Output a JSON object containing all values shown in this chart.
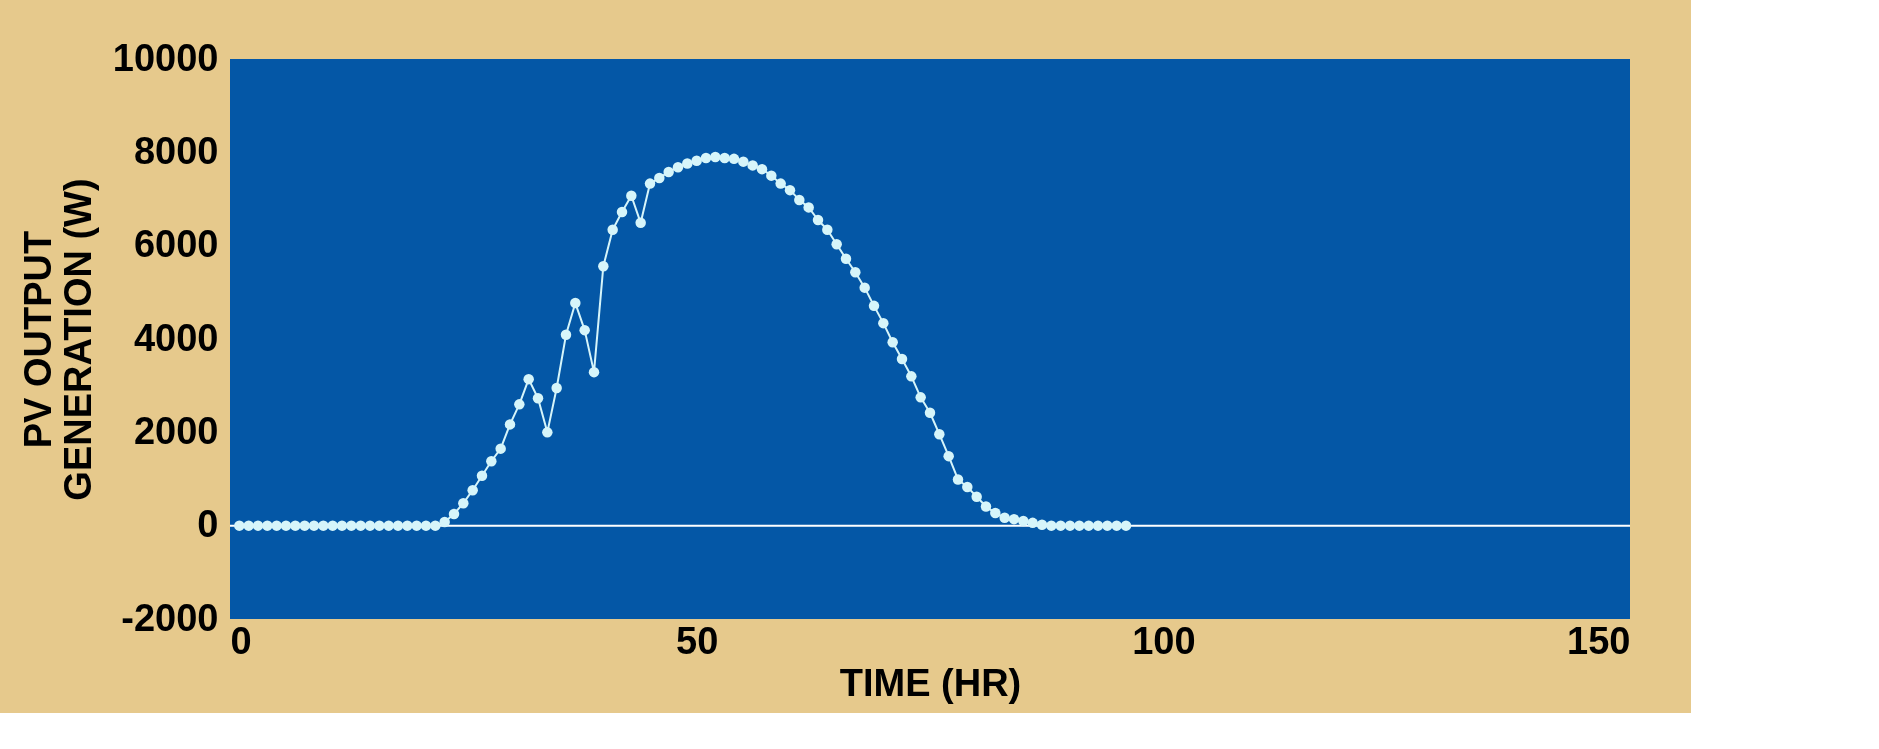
{
  "chart_data": {
    "type": "line",
    "xlabel": "TIME (HR)",
    "ylabel": "PV OUTPUT\nGENERATION (W)",
    "x": [
      1,
      2,
      3,
      4,
      5,
      6,
      7,
      8,
      9,
      10,
      11,
      12,
      13,
      14,
      15,
      16,
      17,
      18,
      19,
      20,
      21,
      22,
      23,
      24,
      25,
      26,
      27,
      28,
      29,
      30,
      31,
      32,
      33,
      34,
      35,
      36,
      37,
      38,
      39,
      40,
      41,
      42,
      43,
      44,
      45,
      46,
      47,
      48,
      49,
      50,
      51,
      52,
      53,
      54,
      55,
      56,
      57,
      58,
      59,
      60,
      61,
      62,
      63,
      64,
      65,
      66,
      67,
      68,
      69,
      70,
      71,
      72,
      73,
      74,
      75,
      76,
      77,
      78,
      79,
      80,
      81,
      82,
      83,
      84,
      85,
      86,
      87,
      88,
      89,
      90,
      91,
      92,
      93,
      94,
      95,
      96
    ],
    "series": [
      {
        "color": "#d6f5fa",
        "values": [
          0,
          0,
          0,
          0,
          0,
          0,
          0,
          0,
          0,
          0,
          0,
          0,
          0,
          0,
          0,
          0,
          0,
          0,
          0,
          0,
          0,
          0,
          80,
          250,
          480,
          760,
          1070,
          1380,
          1650,
          2170,
          2600,
          3140,
          2730,
          2000,
          2950,
          4090,
          4770,
          4190,
          3290,
          5560,
          6340,
          6720,
          7070,
          6490,
          7330,
          7450,
          7580,
          7680,
          7760,
          7820,
          7880,
          7900,
          7880,
          7860,
          7800,
          7720,
          7640,
          7500,
          7330,
          7190,
          6980,
          6820,
          6550,
          6340,
          6030,
          5720,
          5430,
          5100,
          4710,
          4340,
          3930,
          3570,
          3200,
          2750,
          2420,
          1960,
          1490,
          990,
          830,
          620,
          410,
          270,
          170,
          140,
          100,
          60,
          20,
          0,
          0,
          0,
          0,
          0,
          0,
          0,
          0,
          0
        ]
      }
    ],
    "xlim": [
      0,
      150
    ],
    "xticks": [
      0,
      50,
      100,
      150
    ],
    "ylim": [
      -2000,
      10000
    ],
    "yticks": [
      -2000,
      0,
      2000,
      4000,
      6000,
      8000,
      10000
    ],
    "ref_lines": [
      {
        "axis": "y",
        "value": 0,
        "color": "#ffffff"
      }
    ],
    "grid": false,
    "legend": false,
    "marker": "circle",
    "line_style": "solid"
  }
}
